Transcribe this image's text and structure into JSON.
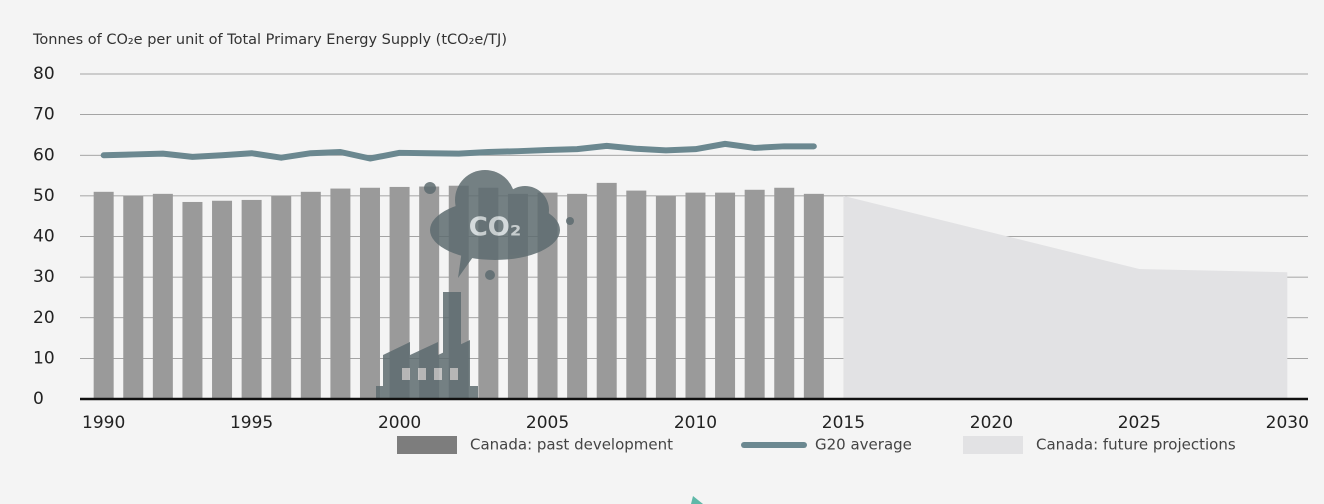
{
  "chart_data": {
    "type": "bar",
    "title": "Tonnes of CO₂e per unit of Total Primary Energy Supply (tCO₂e/TJ)",
    "illustration_label": "CO₂",
    "series": [
      {
        "name": "Canada: past development",
        "type": "bar",
        "color": "#9a9a9a",
        "legend_color": "#7d7d7d",
        "x": [
          1990,
          1991,
          1992,
          1993,
          1994,
          1995,
          1996,
          1997,
          1998,
          1999,
          2000,
          2001,
          2002,
          2003,
          2004,
          2005,
          2006,
          2007,
          2008,
          2009,
          2010,
          2011,
          2012,
          2013,
          2014
        ],
        "values": [
          51,
          50,
          50.5,
          48.5,
          48.8,
          49,
          50,
          51,
          51.8,
          52,
          52.2,
          52.3,
          52.5,
          52,
          50.5,
          50.8,
          50.5,
          53.2,
          51.3,
          50,
          50.8,
          50.8,
          51.5,
          52,
          50.5
        ]
      },
      {
        "name": "G20 average",
        "type": "line",
        "color": "#6b8890",
        "x": [
          1990,
          1991,
          1992,
          1993,
          1994,
          1995,
          1996,
          1997,
          1998,
          1999,
          2000,
          2001,
          2002,
          2003,
          2004,
          2005,
          2006,
          2007,
          2008,
          2009,
          2010,
          2011,
          2012,
          2013,
          2014
        ],
        "values": [
          60,
          60.2,
          60.4,
          59.6,
          60,
          60.5,
          59.4,
          60.5,
          60.8,
          59.2,
          60.6,
          60.5,
          60.4,
          60.8,
          61,
          61.3,
          61.5,
          62.3,
          61.6,
          61.2,
          61.5,
          62.8,
          61.8,
          62.2,
          62.2
        ]
      },
      {
        "name": "Canada: future projections",
        "type": "area",
        "color": "#e2e2e4",
        "x": [
          2015,
          2025,
          2030
        ],
        "values": [
          50,
          32,
          31.2
        ]
      }
    ],
    "xlim": [
      1989.2,
      2030.7
    ],
    "xticks": [
      1990,
      1995,
      2000,
      2005,
      2010,
      2015,
      2020,
      2025,
      2030
    ],
    "ylim": [
      0,
      80
    ],
    "yticks": [
      0,
      10,
      20,
      30,
      40,
      50,
      60,
      70,
      80
    ],
    "grid": true
  }
}
